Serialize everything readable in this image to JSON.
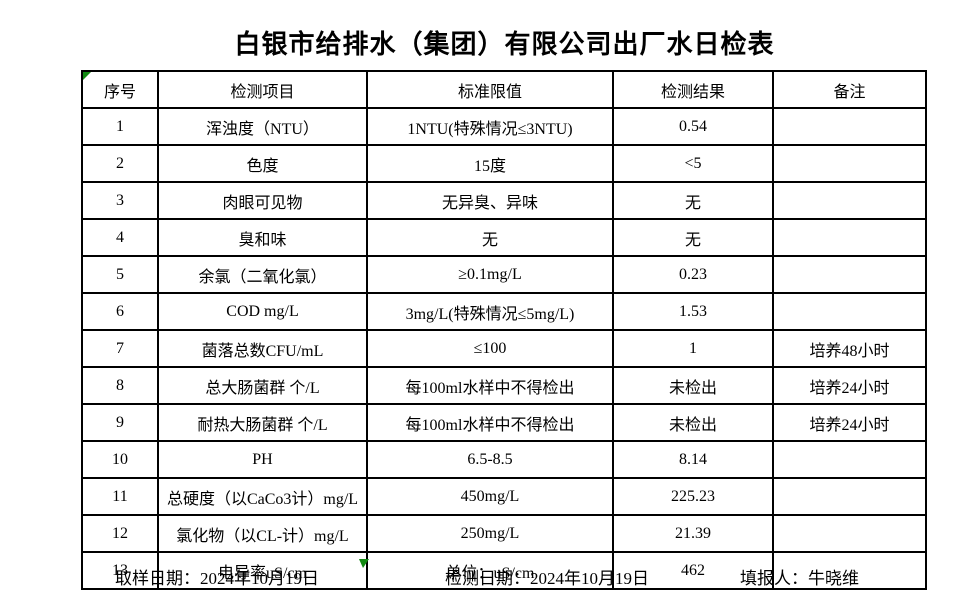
{
  "title": "白银市给排水（集团）有限公司出厂水日检表",
  "table": {
    "headers": [
      "序号",
      "检测项目",
      "标准限值",
      "检测结果",
      "备注"
    ],
    "rows": [
      {
        "no": "1",
        "item": "浑浊度（NTU）",
        "limit": "1NTU(特殊情况≤3NTU)",
        "result": "0.54",
        "remark": ""
      },
      {
        "no": "2",
        "item": "色度",
        "limit": "15度",
        "result": "<5",
        "remark": ""
      },
      {
        "no": "3",
        "item": "肉眼可见物",
        "limit": "无异臭、异味",
        "result": "无",
        "remark": ""
      },
      {
        "no": "4",
        "item": "臭和味",
        "limit": "无",
        "result": "无",
        "remark": ""
      },
      {
        "no": "5",
        "item": "余氯（二氧化氯）",
        "limit": "≥0.1mg/L",
        "result": "0.23",
        "remark": ""
      },
      {
        "no": "6",
        "item": "COD          mg/L",
        "limit": "3mg/L(特殊情况≤5mg/L)",
        "result": "1.53",
        "remark": ""
      },
      {
        "no": "7",
        "item": "菌落总数CFU/mL",
        "limit": "≤100",
        "result": "1",
        "remark": "培养48小时"
      },
      {
        "no": "8",
        "item": "总大肠菌群 个/L",
        "limit": "每100ml水样中不得检出",
        "result": "未检出",
        "remark": "培养24小时"
      },
      {
        "no": "9",
        "item": "耐热大肠菌群 个/L",
        "limit": "每100ml水样中不得检出",
        "result": "未检出",
        "remark": "培养24小时"
      },
      {
        "no": "10",
        "item": "PH",
        "limit": "6.5-8.5",
        "result": "8.14",
        "remark": ""
      },
      {
        "no": "11",
        "item": "总硬度（以CaCo3计）mg/L",
        "limit": "450mg/L",
        "result": "225.23",
        "remark": ""
      },
      {
        "no": "12",
        "item": "氯化物（以CL-计）mg/L",
        "limit": "250mg/L",
        "result": "21.39",
        "remark": ""
      },
      {
        "no": "13",
        "item": "电导率uS/cm",
        "limit": "单位：uS/cm",
        "result": "462",
        "remark": ""
      }
    ]
  },
  "footer": {
    "sample_date": "取样日期：2024年10月19日",
    "test_date": "检测日期：2024年10月19日",
    "reporter": "填报人：牛晓维"
  },
  "icons": {
    "corner_marker": "green-cell-indicator",
    "bottom_marker": "green-selection-marker"
  },
  "colors": {
    "marker_green": "#128a12",
    "border": "#000000",
    "text": "#000000",
    "background": "#ffffff"
  }
}
